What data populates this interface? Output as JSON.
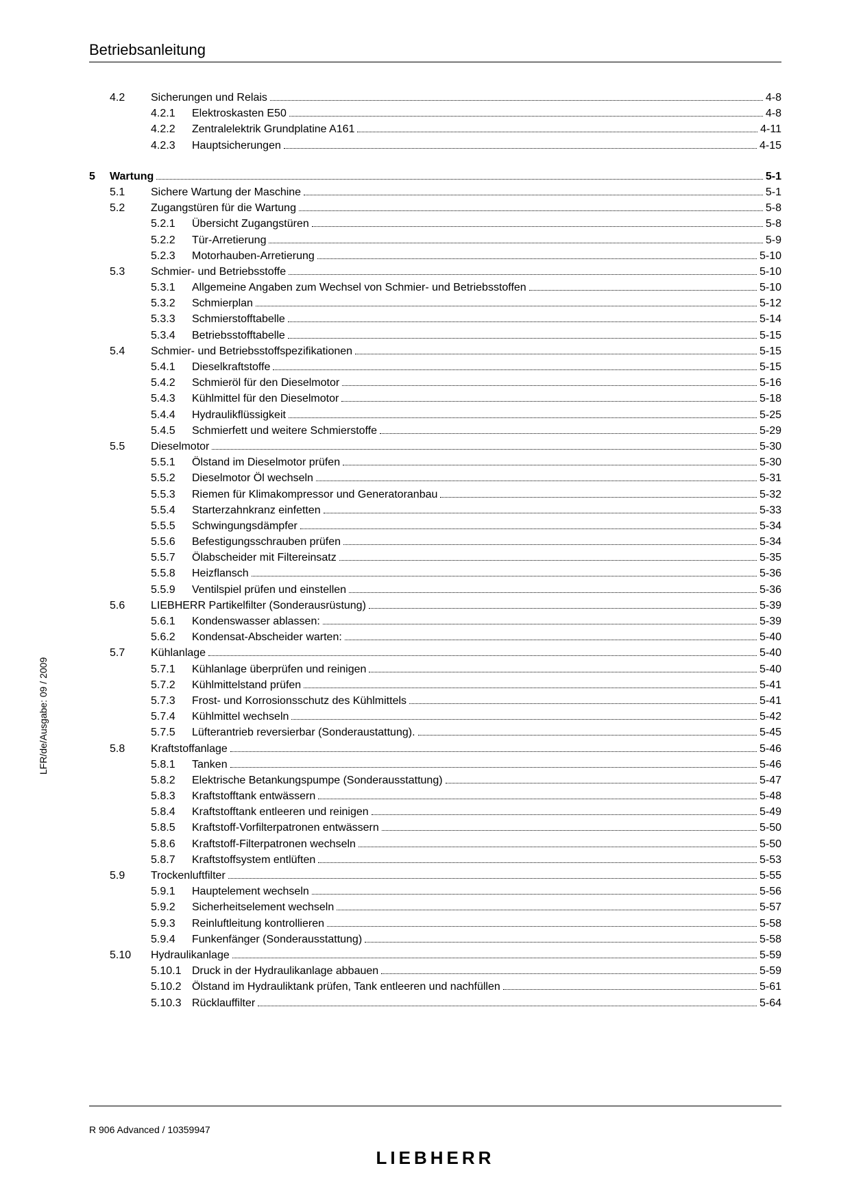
{
  "header": {
    "title": "Betriebsanleitung"
  },
  "side_text": "LFR/de/Ausgabe: 09 / 2009",
  "footer": {
    "doc": "R 906 Advanced / 10359947",
    "brand": "LIEBHERR"
  },
  "toc": [
    {
      "level": "section",
      "chapter": "",
      "sec": "4.2",
      "subsec": "",
      "title": "Sicherungen und Relais",
      "page": "4-8",
      "bold": false
    },
    {
      "level": "subsection",
      "chapter": "",
      "sec": "",
      "subsec": "4.2.1",
      "title": "Elektroskasten E50",
      "page": "4-8",
      "bold": false
    },
    {
      "level": "subsection",
      "chapter": "",
      "sec": "",
      "subsec": "4.2.2",
      "title": "Zentralelektrik Grundplatine A161",
      "page": "4-11",
      "bold": false
    },
    {
      "level": "subsection",
      "chapter": "",
      "sec": "",
      "subsec": "4.2.3",
      "title": "Hauptsicherungen",
      "page": "4-15",
      "bold": false
    },
    {
      "level": "spacer"
    },
    {
      "level": "chapter",
      "chapter": "5",
      "sec": "",
      "subsec": "",
      "title": "Wartung",
      "page": "5-1",
      "bold": true
    },
    {
      "level": "section",
      "chapter": "",
      "sec": "5.1",
      "subsec": "",
      "title": "Sichere Wartung der Maschine",
      "page": "5-1",
      "bold": false
    },
    {
      "level": "section",
      "chapter": "",
      "sec": "5.2",
      "subsec": "",
      "title": "Zugangstüren für die Wartung",
      "page": "5-8",
      "bold": false
    },
    {
      "level": "subsection",
      "chapter": "",
      "sec": "",
      "subsec": "5.2.1",
      "title": "Übersicht Zugangstüren",
      "page": "5-8",
      "bold": false
    },
    {
      "level": "subsection",
      "chapter": "",
      "sec": "",
      "subsec": "5.2.2",
      "title": "Tür-Arretierung",
      "page": "5-9",
      "bold": false
    },
    {
      "level": "subsection",
      "chapter": "",
      "sec": "",
      "subsec": "5.2.3",
      "title": "Motorhauben-Arretierung",
      "page": "5-10",
      "bold": false
    },
    {
      "level": "section",
      "chapter": "",
      "sec": "5.3",
      "subsec": "",
      "title": "Schmier- und Betriebsstoffe",
      "page": "5-10",
      "bold": false
    },
    {
      "level": "subsection",
      "chapter": "",
      "sec": "",
      "subsec": "5.3.1",
      "title": "Allgemeine Angaben zum Wechsel von Schmier- und Betriebsstoffen",
      "page": "5-10",
      "bold": false
    },
    {
      "level": "subsection",
      "chapter": "",
      "sec": "",
      "subsec": "5.3.2",
      "title": "Schmierplan",
      "page": "5-12",
      "bold": false
    },
    {
      "level": "subsection",
      "chapter": "",
      "sec": "",
      "subsec": "5.3.3",
      "title": "Schmierstofftabelle",
      "page": "5-14",
      "bold": false
    },
    {
      "level": "subsection",
      "chapter": "",
      "sec": "",
      "subsec": "5.3.4",
      "title": "Betriebsstofftabelle",
      "page": "5-15",
      "bold": false
    },
    {
      "level": "section",
      "chapter": "",
      "sec": "5.4",
      "subsec": "",
      "title": "Schmier- und Betriebsstoffspezifikationen",
      "page": "5-15",
      "bold": false
    },
    {
      "level": "subsection",
      "chapter": "",
      "sec": "",
      "subsec": "5.4.1",
      "title": "Dieselkraftstoffe",
      "page": "5-15",
      "bold": false
    },
    {
      "level": "subsection",
      "chapter": "",
      "sec": "",
      "subsec": "5.4.2",
      "title": "Schmieröl für den Dieselmotor",
      "page": "5-16",
      "bold": false
    },
    {
      "level": "subsection",
      "chapter": "",
      "sec": "",
      "subsec": "5.4.3",
      "title": "Kühlmittel für den Dieselmotor",
      "page": "5-18",
      "bold": false
    },
    {
      "level": "subsection",
      "chapter": "",
      "sec": "",
      "subsec": "5.4.4",
      "title": "Hydraulikflüssigkeit",
      "page": "5-25",
      "bold": false
    },
    {
      "level": "subsection",
      "chapter": "",
      "sec": "",
      "subsec": "5.4.5",
      "title": "Schmierfett und weitere Schmierstoffe",
      "page": "5-29",
      "bold": false
    },
    {
      "level": "section",
      "chapter": "",
      "sec": "5.5",
      "subsec": "",
      "title": "Dieselmotor",
      "page": "5-30",
      "bold": false
    },
    {
      "level": "subsection",
      "chapter": "",
      "sec": "",
      "subsec": "5.5.1",
      "title": "Ölstand im Dieselmotor prüfen",
      "page": "5-30",
      "bold": false
    },
    {
      "level": "subsection",
      "chapter": "",
      "sec": "",
      "subsec": "5.5.2",
      "title": "Dieselmotor Öl wechseln",
      "page": "5-31",
      "bold": false
    },
    {
      "level": "subsection",
      "chapter": "",
      "sec": "",
      "subsec": "5.5.3",
      "title": "Riemen für Klimakompressor und Generatoranbau",
      "page": "5-32",
      "bold": false
    },
    {
      "level": "subsection",
      "chapter": "",
      "sec": "",
      "subsec": "5.5.4",
      "title": "Starterzahnkranz einfetten",
      "page": "5-33",
      "bold": false
    },
    {
      "level": "subsection",
      "chapter": "",
      "sec": "",
      "subsec": "5.5.5",
      "title": "Schwingungsdämpfer",
      "page": "5-34",
      "bold": false
    },
    {
      "level": "subsection",
      "chapter": "",
      "sec": "",
      "subsec": "5.5.6",
      "title": "Befestigungsschrauben prüfen",
      "page": "5-34",
      "bold": false
    },
    {
      "level": "subsection",
      "chapter": "",
      "sec": "",
      "subsec": "5.5.7",
      "title": "Ölabscheider mit Filtereinsatz",
      "page": "5-35",
      "bold": false
    },
    {
      "level": "subsection",
      "chapter": "",
      "sec": "",
      "subsec": "5.5.8",
      "title": "Heizflansch",
      "page": "5-36",
      "bold": false
    },
    {
      "level": "subsection",
      "chapter": "",
      "sec": "",
      "subsec": "5.5.9",
      "title": "Ventilspiel prüfen und einstellen",
      "page": "5-36",
      "bold": false
    },
    {
      "level": "section",
      "chapter": "",
      "sec": "5.6",
      "subsec": "",
      "title": "LIEBHERR Partikelfilter (Sonderausrüstung)",
      "page": "5-39",
      "bold": false
    },
    {
      "level": "subsection",
      "chapter": "",
      "sec": "",
      "subsec": "5.6.1",
      "title": "Kondenswasser ablassen:",
      "page": "5-39",
      "bold": false
    },
    {
      "level": "subsection",
      "chapter": "",
      "sec": "",
      "subsec": "5.6.2",
      "title": "Kondensat-Abscheider warten:",
      "page": "5-40",
      "bold": false
    },
    {
      "level": "section",
      "chapter": "",
      "sec": "5.7",
      "subsec": "",
      "title": "Kühlanlage",
      "page": "5-40",
      "bold": false
    },
    {
      "level": "subsection",
      "chapter": "",
      "sec": "",
      "subsec": "5.7.1",
      "title": "Kühlanlage überprüfen und reinigen",
      "page": "5-40",
      "bold": false
    },
    {
      "level": "subsection",
      "chapter": "",
      "sec": "",
      "subsec": "5.7.2",
      "title": "Kühlmittelstand prüfen",
      "page": "5-41",
      "bold": false
    },
    {
      "level": "subsection",
      "chapter": "",
      "sec": "",
      "subsec": "5.7.3",
      "title": "Frost- und Korrosionsschutz des Kühlmittels",
      "page": "5-41",
      "bold": false
    },
    {
      "level": "subsection",
      "chapter": "",
      "sec": "",
      "subsec": "5.7.4",
      "title": "Kühlmittel wechseln",
      "page": "5-42",
      "bold": false
    },
    {
      "level": "subsection",
      "chapter": "",
      "sec": "",
      "subsec": "5.7.5",
      "title": "Lüfterantrieb reversierbar (Sonderaustattung).",
      "page": "5-45",
      "bold": false
    },
    {
      "level": "section",
      "chapter": "",
      "sec": "5.8",
      "subsec": "",
      "title": "Kraftstoffanlage",
      "page": "5-46",
      "bold": false
    },
    {
      "level": "subsection",
      "chapter": "",
      "sec": "",
      "subsec": "5.8.1",
      "title": "Tanken",
      "page": "5-46",
      "bold": false
    },
    {
      "level": "subsection",
      "chapter": "",
      "sec": "",
      "subsec": "5.8.2",
      "title": "Elektrische Betankungspumpe (Sonderausstattung)",
      "page": "5-47",
      "bold": false
    },
    {
      "level": "subsection",
      "chapter": "",
      "sec": "",
      "subsec": "5.8.3",
      "title": "Kraftstofftank entwässern",
      "page": "5-48",
      "bold": false
    },
    {
      "level": "subsection",
      "chapter": "",
      "sec": "",
      "subsec": "5.8.4",
      "title": "Kraftstofftank entleeren und reinigen",
      "page": "5-49",
      "bold": false
    },
    {
      "level": "subsection",
      "chapter": "",
      "sec": "",
      "subsec": "5.8.5",
      "title": "Kraftstoff-Vorfilterpatronen entwässern",
      "page": "5-50",
      "bold": false
    },
    {
      "level": "subsection",
      "chapter": "",
      "sec": "",
      "subsec": "5.8.6",
      "title": "Kraftstoff-Filterpatronen wechseln",
      "page": "5-50",
      "bold": false
    },
    {
      "level": "subsection",
      "chapter": "",
      "sec": "",
      "subsec": "5.8.7",
      "title": "Kraftstoffsystem entlüften",
      "page": "5-53",
      "bold": false
    },
    {
      "level": "section",
      "chapter": "",
      "sec": "5.9",
      "subsec": "",
      "title": "Trockenluftfilter",
      "page": "5-55",
      "bold": false
    },
    {
      "level": "subsection",
      "chapter": "",
      "sec": "",
      "subsec": "5.9.1",
      "title": "Hauptelement wechseln",
      "page": "5-56",
      "bold": false
    },
    {
      "level": "subsection",
      "chapter": "",
      "sec": "",
      "subsec": "5.9.2",
      "title": "Sicherheitselement wechseln",
      "page": "5-57",
      "bold": false
    },
    {
      "level": "subsection",
      "chapter": "",
      "sec": "",
      "subsec": "5.9.3",
      "title": "Reinluftleitung kontrollieren",
      "page": "5-58",
      "bold": false
    },
    {
      "level": "subsection",
      "chapter": "",
      "sec": "",
      "subsec": "5.9.4",
      "title": "Funkenfänger (Sonderausstattung)",
      "page": "5-58",
      "bold": false
    },
    {
      "level": "section",
      "chapter": "",
      "sec": "5.10",
      "subsec": "",
      "title": "Hydraulikanlage",
      "page": "5-59",
      "bold": false
    },
    {
      "level": "subsection",
      "chapter": "",
      "sec": "",
      "subsec": "5.10.1",
      "title": "Druck in der Hydraulikanlage abbauen",
      "page": "5-59",
      "bold": false
    },
    {
      "level": "subsection",
      "chapter": "",
      "sec": "",
      "subsec": "5.10.2",
      "title": "Ölstand im Hydrauliktank prüfen, Tank entleeren und nachfüllen",
      "page": "5-61",
      "bold": false
    },
    {
      "level": "subsection",
      "chapter": "",
      "sec": "",
      "subsec": "5.10.3",
      "title": "Rücklauffilter",
      "page": "5-64",
      "bold": false
    }
  ]
}
